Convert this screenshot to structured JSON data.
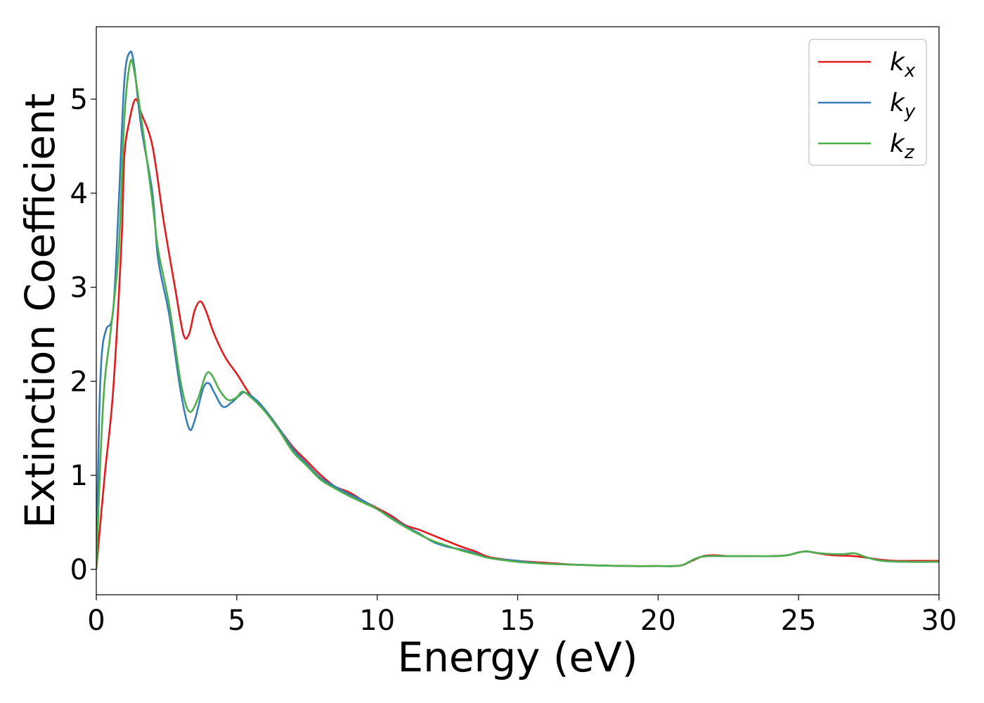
{
  "chart_data": {
    "type": "line",
    "title": "",
    "xlabel": "Energy (eV)",
    "ylabel": "Extinction Coefficient",
    "xlim": [
      0,
      30
    ],
    "ylim": [
      -0.27,
      5.77
    ],
    "xticks": [
      0,
      5,
      10,
      15,
      20,
      25,
      30
    ],
    "yticks": [
      0,
      1,
      2,
      3,
      4,
      5
    ],
    "xtick_labels": [
      "0",
      "5",
      "10",
      "15",
      "20",
      "25",
      "30"
    ],
    "ytick_labels": [
      "0",
      "1",
      "2",
      "3",
      "4",
      "5"
    ],
    "grid": false,
    "legend_position": "top-right",
    "series": [
      {
        "name": "k_x",
        "legend_base": "k",
        "legend_sub": "x",
        "color": "#e41a1c",
        "points": [
          [
            0,
            0
          ],
          [
            0.3,
            1.0
          ],
          [
            0.6,
            1.9
          ],
          [
            0.9,
            3.5
          ],
          [
            1.0,
            4.4
          ],
          [
            1.2,
            4.8
          ],
          [
            1.4,
            5.0
          ],
          [
            1.6,
            4.85
          ],
          [
            2.0,
            4.5
          ],
          [
            2.4,
            3.7
          ],
          [
            2.8,
            3.0
          ],
          [
            3.1,
            2.5
          ],
          [
            3.3,
            2.5
          ],
          [
            3.5,
            2.75
          ],
          [
            3.7,
            2.85
          ],
          [
            3.9,
            2.75
          ],
          [
            4.2,
            2.5
          ],
          [
            4.6,
            2.25
          ],
          [
            5.0,
            2.08
          ],
          [
            5.5,
            1.85
          ],
          [
            6.0,
            1.7
          ],
          [
            6.5,
            1.5
          ],
          [
            7.0,
            1.3
          ],
          [
            7.5,
            1.15
          ],
          [
            8.0,
            1.0
          ],
          [
            8.5,
            0.88
          ],
          [
            9.0,
            0.82
          ],
          [
            9.5,
            0.73
          ],
          [
            10.0,
            0.65
          ],
          [
            10.5,
            0.57
          ],
          [
            11.0,
            0.47
          ],
          [
            11.5,
            0.42
          ],
          [
            12.0,
            0.36
          ],
          [
            12.5,
            0.3
          ],
          [
            13.0,
            0.24
          ],
          [
            13.5,
            0.19
          ],
          [
            14.0,
            0.13
          ],
          [
            15.0,
            0.09
          ],
          [
            16.0,
            0.07
          ],
          [
            17.0,
            0.05
          ],
          [
            18.0,
            0.04
          ],
          [
            19.0,
            0.035
          ],
          [
            20.0,
            0.035
          ],
          [
            20.8,
            0.04
          ],
          [
            21.2,
            0.09
          ],
          [
            21.6,
            0.14
          ],
          [
            22.0,
            0.15
          ],
          [
            22.5,
            0.14
          ],
          [
            23.0,
            0.14
          ],
          [
            23.5,
            0.14
          ],
          [
            24.0,
            0.14
          ],
          [
            24.6,
            0.15
          ],
          [
            25.0,
            0.18
          ],
          [
            25.3,
            0.19
          ],
          [
            25.7,
            0.17
          ],
          [
            26.2,
            0.15
          ],
          [
            27.0,
            0.14
          ],
          [
            27.5,
            0.12
          ],
          [
            28.0,
            0.1
          ],
          [
            28.5,
            0.09
          ],
          [
            29.0,
            0.09
          ],
          [
            30.0,
            0.09
          ]
        ]
      },
      {
        "name": "k_y",
        "legend_base": "k",
        "legend_sub": "y",
        "color": "#377eb8",
        "points": [
          [
            0,
            0
          ],
          [
            0.1,
            1.6
          ],
          [
            0.2,
            2.3
          ],
          [
            0.35,
            2.55
          ],
          [
            0.6,
            2.75
          ],
          [
            0.8,
            3.9
          ],
          [
            1.0,
            5.2
          ],
          [
            1.2,
            5.5
          ],
          [
            1.35,
            5.35
          ],
          [
            1.6,
            4.7
          ],
          [
            2.0,
            4.0
          ],
          [
            2.2,
            3.3
          ],
          [
            2.6,
            2.7
          ],
          [
            3.0,
            1.9
          ],
          [
            3.3,
            1.5
          ],
          [
            3.5,
            1.58
          ],
          [
            3.8,
            1.92
          ],
          [
            4.0,
            1.98
          ],
          [
            4.2,
            1.88
          ],
          [
            4.5,
            1.73
          ],
          [
            4.8,
            1.77
          ],
          [
            5.1,
            1.85
          ],
          [
            5.3,
            1.88
          ],
          [
            5.7,
            1.8
          ],
          [
            6.0,
            1.7
          ],
          [
            6.5,
            1.5
          ],
          [
            7.0,
            1.28
          ],
          [
            7.5,
            1.12
          ],
          [
            8.0,
            0.97
          ],
          [
            8.5,
            0.88
          ],
          [
            9.0,
            0.8
          ],
          [
            9.5,
            0.73
          ],
          [
            10.0,
            0.64
          ],
          [
            10.5,
            0.55
          ],
          [
            11.0,
            0.46
          ],
          [
            11.5,
            0.38
          ],
          [
            12.0,
            0.29
          ],
          [
            12.5,
            0.24
          ],
          [
            13.0,
            0.21
          ],
          [
            13.5,
            0.17
          ],
          [
            14.0,
            0.12
          ],
          [
            15.0,
            0.09
          ],
          [
            16.0,
            0.06
          ],
          [
            17.0,
            0.05
          ],
          [
            18.0,
            0.04
          ],
          [
            19.0,
            0.035
          ],
          [
            20.0,
            0.035
          ],
          [
            20.8,
            0.04
          ],
          [
            21.3,
            0.11
          ],
          [
            21.7,
            0.14
          ],
          [
            22.5,
            0.14
          ],
          [
            23.0,
            0.14
          ],
          [
            24.0,
            0.14
          ],
          [
            24.6,
            0.15
          ],
          [
            25.0,
            0.18
          ],
          [
            25.3,
            0.19
          ],
          [
            25.8,
            0.17
          ],
          [
            26.5,
            0.16
          ],
          [
            27.0,
            0.17
          ],
          [
            27.4,
            0.13
          ],
          [
            28.0,
            0.09
          ],
          [
            29.0,
            0.08
          ],
          [
            30.0,
            0.08
          ]
        ]
      },
      {
        "name": "k_z",
        "legend_base": "k",
        "legend_sub": "z",
        "color": "#4daf4a",
        "points": [
          [
            0,
            0
          ],
          [
            0.15,
            1.2
          ],
          [
            0.3,
            2.0
          ],
          [
            0.5,
            2.5
          ],
          [
            0.8,
            3.4
          ],
          [
            1.0,
            4.8
          ],
          [
            1.2,
            5.38
          ],
          [
            1.35,
            5.3
          ],
          [
            1.6,
            4.8
          ],
          [
            2.0,
            3.9
          ],
          [
            2.2,
            3.4
          ],
          [
            2.6,
            2.8
          ],
          [
            3.0,
            2.0
          ],
          [
            3.3,
            1.68
          ],
          [
            3.6,
            1.8
          ],
          [
            3.9,
            2.07
          ],
          [
            4.1,
            2.07
          ],
          [
            4.4,
            1.9
          ],
          [
            4.7,
            1.8
          ],
          [
            5.0,
            1.83
          ],
          [
            5.2,
            1.89
          ],
          [
            5.5,
            1.83
          ],
          [
            6.0,
            1.68
          ],
          [
            6.5,
            1.48
          ],
          [
            7.0,
            1.25
          ],
          [
            7.5,
            1.1
          ],
          [
            8.0,
            0.95
          ],
          [
            8.5,
            0.86
          ],
          [
            9.0,
            0.78
          ],
          [
            9.5,
            0.71
          ],
          [
            10.0,
            0.64
          ],
          [
            10.5,
            0.54
          ],
          [
            11.0,
            0.45
          ],
          [
            11.5,
            0.37
          ],
          [
            12.0,
            0.3
          ],
          [
            12.5,
            0.25
          ],
          [
            13.0,
            0.2
          ],
          [
            13.5,
            0.16
          ],
          [
            14.0,
            0.12
          ],
          [
            15.0,
            0.08
          ],
          [
            16.0,
            0.06
          ],
          [
            17.0,
            0.05
          ],
          [
            18.0,
            0.04
          ],
          [
            19.0,
            0.035
          ],
          [
            20.0,
            0.035
          ],
          [
            20.8,
            0.04
          ],
          [
            21.3,
            0.11
          ],
          [
            21.7,
            0.14
          ],
          [
            22.5,
            0.14
          ],
          [
            23.0,
            0.14
          ],
          [
            24.0,
            0.14
          ],
          [
            24.6,
            0.15
          ],
          [
            25.0,
            0.18
          ],
          [
            25.3,
            0.19
          ],
          [
            25.8,
            0.17
          ],
          [
            26.5,
            0.16
          ],
          [
            27.0,
            0.17
          ],
          [
            27.4,
            0.13
          ],
          [
            28.0,
            0.09
          ],
          [
            29.0,
            0.08
          ],
          [
            30.0,
            0.08
          ]
        ]
      }
    ]
  }
}
